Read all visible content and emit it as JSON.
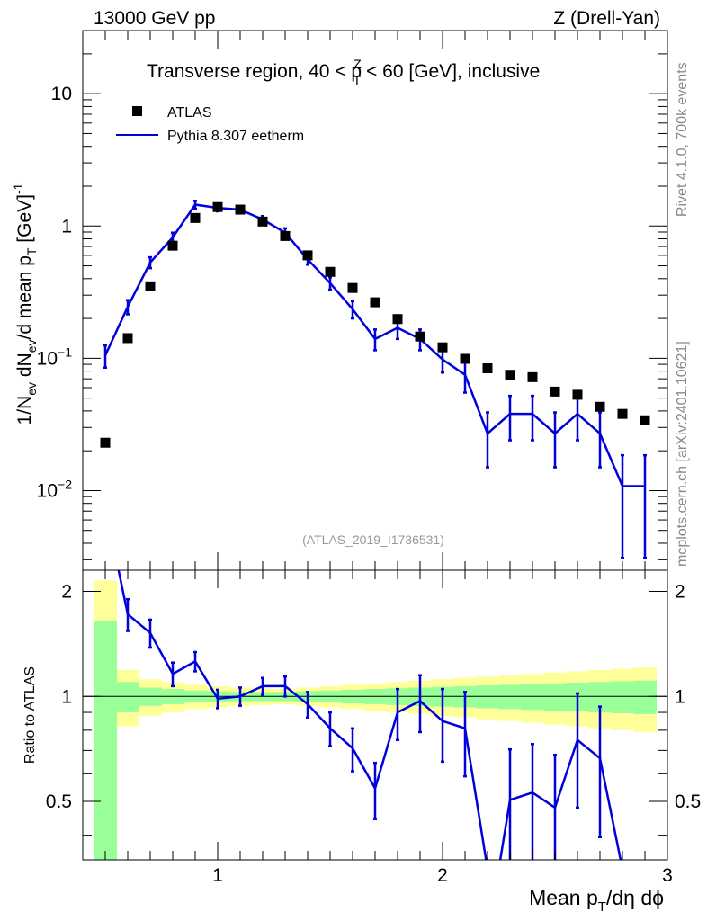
{
  "header": {
    "left": "13000 GeV pp",
    "right": "Z (Drell-Yan)"
  },
  "side_labels": {
    "rivet": "Rivet 4.1.0,  700k events",
    "source": "mcplots.cern.ch [arXiv:2401.10621]"
  },
  "colors": {
    "mc": "#0000dd",
    "data": "#000000",
    "band_inner": "#99ff99",
    "band_outer": "#ffff99"
  },
  "chart_data": [
    {
      "type": "scatter",
      "title": "Transverse region, 40 < pT^Z < 60 [GeV], inclusive",
      "title_parts": [
        "Transverse region, 40 < p",
        "Z",
        "T",
        " < 60 [GeV], inclusive"
      ],
      "ylabel_parts": [
        "1/N",
        "ev",
        " dN",
        "ev",
        "/d mean p",
        "T",
        " [GeV]",
        "-1"
      ],
      "xlabel_parts": [
        "Mean p",
        "T",
        "/dη dϕ"
      ],
      "yscale": "log",
      "ylim": [
        0.0025,
        30
      ],
      "xlim": [
        0.4,
        3.0
      ],
      "x_ticks": [
        "1",
        "2",
        "3"
      ],
      "y_ticks": [
        {
          "value": 0.01,
          "base": "10",
          "exp": "−2"
        },
        {
          "value": 0.1,
          "base": "10",
          "exp": "−1"
        },
        {
          "value": 1,
          "base": "1",
          "exp": ""
        },
        {
          "value": 10,
          "base": "10",
          "exp": ""
        }
      ],
      "watermark": "(ATLAS_2019_I1736531)",
      "legend": [
        {
          "label": "ATLAS",
          "kind": "marker"
        },
        {
          "label": "Pythia 8.307 eetherm",
          "kind": "line"
        }
      ],
      "series": [
        {
          "name": "ATLAS",
          "x": [
            0.5,
            0.6,
            0.7,
            0.8,
            0.9,
            1.0,
            1.1,
            1.2,
            1.3,
            1.4,
            1.5,
            1.6,
            1.7,
            1.8,
            1.9,
            2.0,
            2.1,
            2.2,
            2.3,
            2.4,
            2.5,
            2.6,
            2.7,
            2.8,
            2.9
          ],
          "y": [
            0.023,
            0.142,
            0.35,
            0.71,
            1.15,
            1.39,
            1.33,
            1.08,
            0.84,
            0.6,
            0.45,
            0.34,
            0.265,
            0.198,
            0.146,
            0.121,
            0.099,
            0.084,
            0.075,
            0.072,
            0.056,
            0.053,
            0.043,
            0.038,
            0.034
          ]
        },
        {
          "name": "Pythia 8.307 eetherm",
          "x": [
            0.5,
            0.6,
            0.7,
            0.8,
            0.9,
            1.0,
            1.1,
            1.2,
            1.3,
            1.4,
            1.5,
            1.6,
            1.7,
            1.8,
            1.9,
            2.0,
            2.1,
            2.2,
            2.3,
            2.4,
            2.5,
            2.6,
            2.7,
            2.8,
            2.9
          ],
          "y": [
            0.105,
            0.245,
            0.53,
            0.82,
            1.45,
            1.37,
            1.33,
            1.12,
            0.89,
            0.56,
            0.37,
            0.235,
            0.14,
            0.17,
            0.14,
            0.098,
            0.075,
            0.027,
            0.038,
            0.038,
            0.027,
            0.038,
            0.027,
            0.0108,
            0.0108
          ],
          "yerr": [
            0.02,
            0.03,
            0.05,
            0.07,
            0.1,
            0.08,
            0.07,
            0.07,
            0.07,
            0.05,
            0.04,
            0.035,
            0.025,
            0.03,
            0.025,
            0.02,
            0.02,
            0.012,
            0.014,
            0.014,
            0.012,
            0.014,
            0.012,
            0.0077,
            0.0077
          ]
        }
      ]
    },
    {
      "type": "line",
      "ylabel": "Ratio to ATLAS",
      "yscale": "log",
      "ylim": [
        0.34,
        2.3
      ],
      "xlim": [
        0.4,
        3.0
      ],
      "x_ticks": [
        "1",
        "2",
        "3"
      ],
      "y_ticks": [
        "0.5",
        "1",
        "2"
      ],
      "reference": 1.0,
      "series": [
        {
          "name": "Pythia 8.307 eetherm / ATLAS",
          "x": [
            0.6,
            0.7,
            0.8,
            0.9,
            1.0,
            1.1,
            1.2,
            1.3,
            1.4,
            1.5,
            1.6,
            1.7,
            1.8,
            1.9,
            2.0,
            2.1,
            2.3,
            2.4,
            2.5,
            2.6,
            2.7
          ],
          "y": [
            1.72,
            1.52,
            1.16,
            1.26,
            0.985,
            1.0,
            1.07,
            1.07,
            0.95,
            0.81,
            0.71,
            0.545,
            0.9,
            0.97,
            0.85,
            0.81,
            0.505,
            0.53,
            0.48,
            0.75,
            0.665
          ],
          "yerr": [
            0.18,
            0.14,
            0.09,
            0.08,
            0.06,
            0.06,
            0.06,
            0.07,
            0.08,
            0.09,
            0.1,
            0.1,
            0.15,
            0.18,
            0.2,
            0.22,
            0.2,
            0.2,
            0.2,
            0.27,
            0.27
          ],
          "edge_points": [
            {
              "x": 0.5,
              "y": 3.5
            },
            {
              "x": 2.2,
              "y": 0.32
            },
            {
              "x": 2.8,
              "y": 0.32
            }
          ]
        }
      ],
      "bands": {
        "x_edges": [
          0.45,
          0.55,
          0.65,
          0.75,
          0.85,
          0.95,
          1.05,
          1.15,
          1.25,
          1.35,
          1.45,
          1.55,
          1.65,
          1.75,
          1.85,
          1.95,
          2.05,
          2.15,
          2.25,
          2.35,
          2.45,
          2.55,
          2.65,
          2.75,
          2.85,
          2.95
        ],
        "inner": [
          [
            0.3,
            1.65
          ],
          [
            0.9,
            1.1
          ],
          [
            0.94,
            1.06
          ],
          [
            0.95,
            1.05
          ],
          [
            0.96,
            1.04
          ],
          [
            0.965,
            1.035
          ],
          [
            0.97,
            1.03
          ],
          [
            0.97,
            1.03
          ],
          [
            0.97,
            1.03
          ],
          [
            0.965,
            1.035
          ],
          [
            0.96,
            1.04
          ],
          [
            0.955,
            1.045
          ],
          [
            0.95,
            1.05
          ],
          [
            0.945,
            1.055
          ],
          [
            0.94,
            1.06
          ],
          [
            0.935,
            1.065
          ],
          [
            0.93,
            1.07
          ],
          [
            0.925,
            1.075
          ],
          [
            0.92,
            1.08
          ],
          [
            0.915,
            1.085
          ],
          [
            0.91,
            1.09
          ],
          [
            0.905,
            1.095
          ],
          [
            0.9,
            1.1
          ],
          [
            0.895,
            1.105
          ],
          [
            0.89,
            1.11
          ]
        ],
        "outer": [
          [
            0.3,
            2.15
          ],
          [
            0.82,
            1.19
          ],
          [
            0.88,
            1.12
          ],
          [
            0.9,
            1.1
          ],
          [
            0.92,
            1.08
          ],
          [
            0.93,
            1.07
          ],
          [
            0.94,
            1.06
          ],
          [
            0.945,
            1.055
          ],
          [
            0.95,
            1.05
          ],
          [
            0.94,
            1.06
          ],
          [
            0.93,
            1.07
          ],
          [
            0.92,
            1.08
          ],
          [
            0.91,
            1.09
          ],
          [
            0.9,
            1.1
          ],
          [
            0.89,
            1.11
          ],
          [
            0.88,
            1.12
          ],
          [
            0.87,
            1.13
          ],
          [
            0.86,
            1.14
          ],
          [
            0.85,
            1.15
          ],
          [
            0.84,
            1.16
          ],
          [
            0.83,
            1.17
          ],
          [
            0.82,
            1.18
          ],
          [
            0.81,
            1.19
          ],
          [
            0.8,
            1.2
          ],
          [
            0.79,
            1.21
          ]
        ]
      }
    }
  ]
}
